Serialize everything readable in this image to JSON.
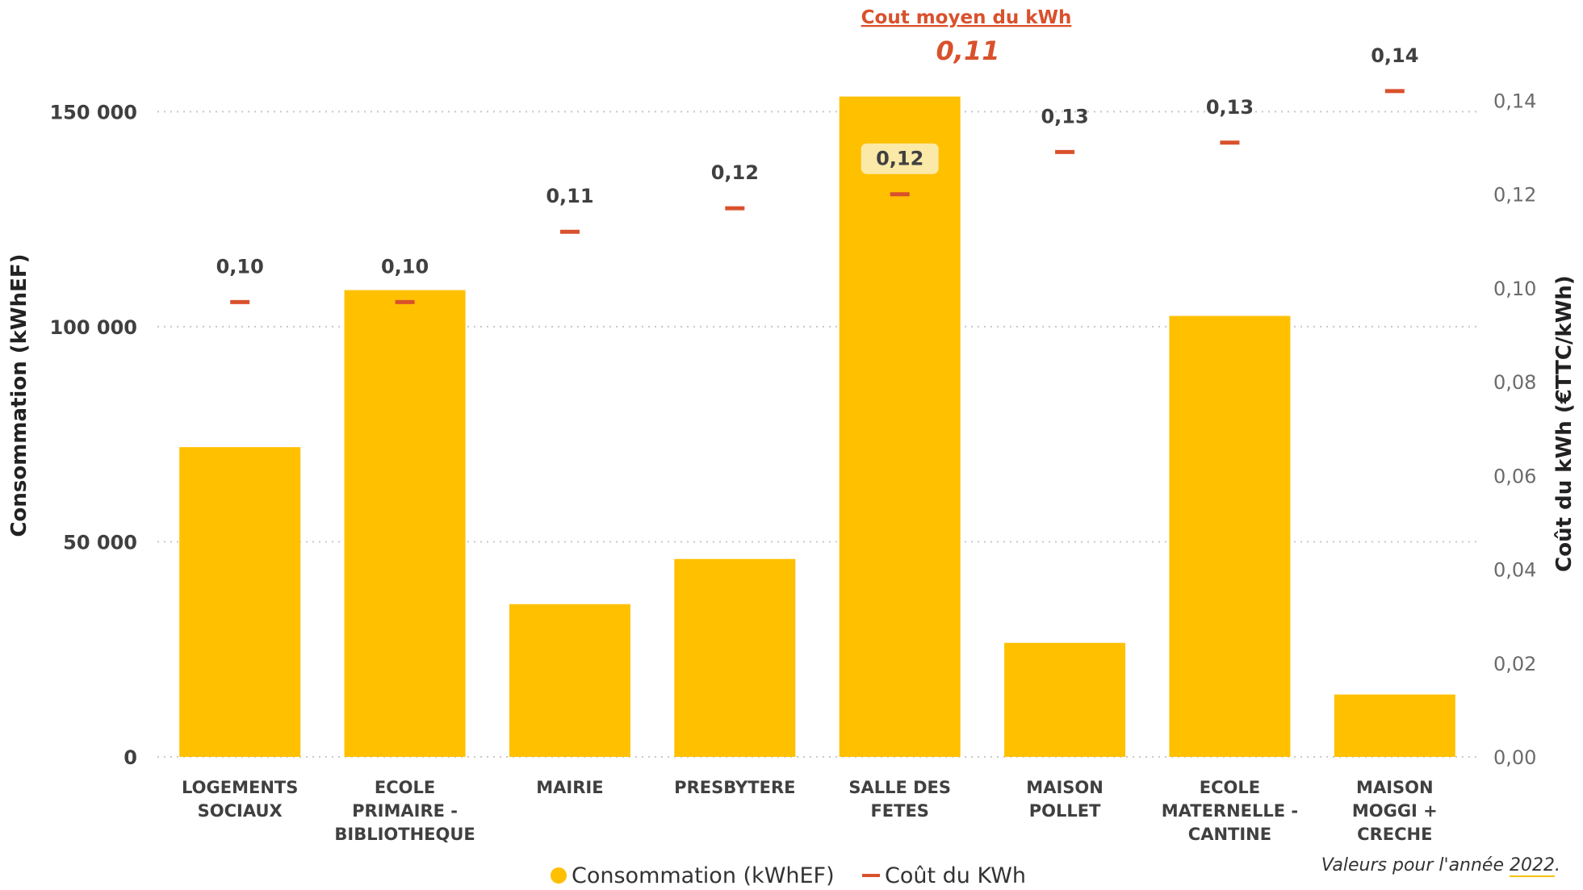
{
  "chart_data": {
    "type": "bar",
    "categories": [
      [
        "LOGEMENTS",
        "SOCIAUX"
      ],
      [
        "ECOLE",
        "PRIMAIRE -",
        "BIBLIOTHEQUE"
      ],
      [
        "MAIRIE"
      ],
      [
        "PRESBYTERE"
      ],
      [
        "SALLE DES",
        "FETES"
      ],
      [
        "MAISON",
        "POLLET"
      ],
      [
        "ECOLE",
        "MATERNELLE -",
        "CANTINE"
      ],
      [
        "MAISON",
        "MOGGI +",
        "CRECHE"
      ]
    ],
    "series": [
      {
        "name": "Consommation (kWhEF)",
        "kind": "bar",
        "axis": "left",
        "color": "#FFC000",
        "values": [
          72000,
          108500,
          35500,
          46000,
          153500,
          26500,
          102500,
          14500
        ]
      },
      {
        "name": "Coût du KWh",
        "kind": "marker",
        "axis": "right",
        "color": "#D9512C",
        "values": [
          0.097,
          0.097,
          0.112,
          0.117,
          0.12,
          0.129,
          0.131,
          0.142
        ],
        "labels": [
          "0,10",
          "0,10",
          "0,11",
          "0,12",
          "0,12",
          "0,13",
          "0,13",
          "0,14"
        ]
      }
    ],
    "ylabel_left": "Consommation (kWhEF)",
    "ylabel_right": "Coût du kWh (€TTC/kWh)",
    "ylim_left": [
      0,
      160000
    ],
    "ylim_right": [
      0,
      0.1468
    ],
    "yticks_left": [
      {
        "value": 0,
        "label": "0"
      },
      {
        "value": 50000,
        "label": "50 000"
      },
      {
        "value": 100000,
        "label": "100 000"
      },
      {
        "value": 150000,
        "label": "150 000"
      }
    ],
    "yticks_right": [
      {
        "value": 0,
        "label": "0,00"
      },
      {
        "value": 0.02,
        "label": "0,02"
      },
      {
        "value": 0.04,
        "label": "0,04"
      },
      {
        "value": 0.06,
        "label": "0,06"
      },
      {
        "value": 0.08,
        "label": "0,08"
      },
      {
        "value": 0.1,
        "label": "0,10"
      },
      {
        "value": 0.12,
        "label": "0,12"
      },
      {
        "value": 0.14,
        "label": "0,14"
      }
    ],
    "grid": true,
    "legend_position": "bottom-center",
    "highlighted_label_index": 4,
    "average": {
      "title": "Cout moyen du kWh",
      "value": "0,11"
    }
  },
  "footnote": {
    "prefix": "Valeurs pour l'année ",
    "year": "2022",
    "suffix": "."
  }
}
